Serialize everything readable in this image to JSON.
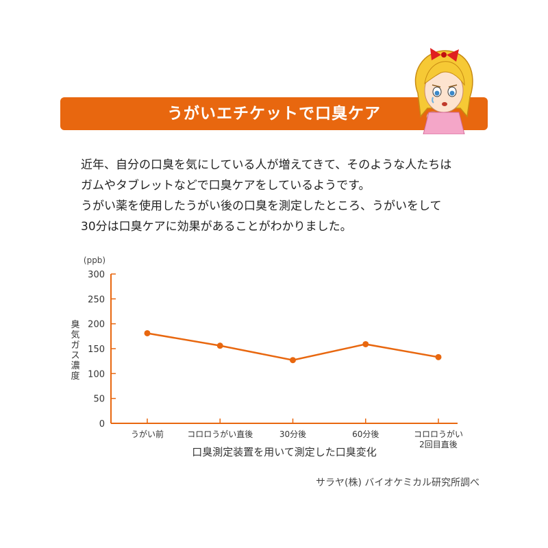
{
  "banner": {
    "title": "うがいエチケットで口臭ケア"
  },
  "intro": {
    "lines": [
      "近年、自分の口臭を気にしている人が増えてきて、そのような人たちは",
      "ガムやタブレットなどで口臭ケアをしているようです。",
      "うがい薬を使用したうがい後の口臭を測定したところ、うがいをして",
      "30分は口臭ケアに効果があることがわかりました。"
    ]
  },
  "chart_data": {
    "type": "line",
    "unit_label": "(ppb)",
    "ylabel": "臭気ガス濃度",
    "xlabel": "口臭測定装置を用いて測定した口臭変化",
    "categories": [
      [
        "うがい前"
      ],
      [
        "コロロうがい直後"
      ],
      [
        "30分後"
      ],
      [
        "60分後"
      ],
      [
        "コロロうがい",
        "2回目直後"
      ]
    ],
    "values": [
      181,
      156,
      127,
      159,
      133
    ],
    "yticks": [
      0,
      50,
      100,
      150,
      200,
      250,
      300
    ],
    "ylim": [
      0,
      300
    ],
    "grid": false,
    "color": "#e8670f"
  },
  "credit": "サラヤ(株) バイオケミカル研究所調べ"
}
